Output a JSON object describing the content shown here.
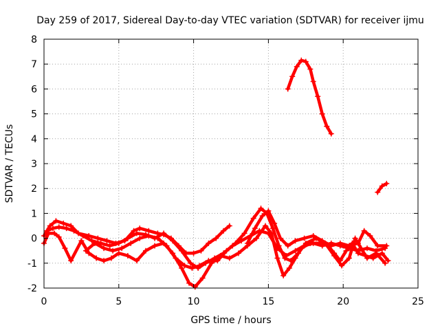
{
  "chart_data": {
    "type": "scatter",
    "title": "Day 259 of 2017, Sidereal Day-to-day VTEC variation (SDTVAR) for receiver ijmu",
    "xlabel": "GPS time / hours",
    "ylabel": "SDTVAR / TECUs",
    "xlim": [
      0,
      25
    ],
    "ylim": [
      -2,
      8
    ],
    "xticks": [
      0,
      5,
      10,
      15,
      20,
      25
    ],
    "yticks": [
      -2,
      -1,
      0,
      1,
      2,
      3,
      4,
      5,
      6,
      7,
      8
    ],
    "grid": true,
    "marker": "plus",
    "color": "#ff0000",
    "series": [
      {
        "name": "track-1",
        "points": [
          [
            0,
            0.1
          ],
          [
            0.4,
            0.5
          ],
          [
            0.8,
            0.7
          ],
          [
            1.3,
            0.6
          ],
          [
            1.8,
            0.5
          ],
          [
            2.3,
            0.2
          ],
          [
            3,
            0.1
          ],
          [
            3.6,
            0
          ],
          [
            4.2,
            -0.1
          ],
          [
            4.8,
            -0.2
          ],
          [
            5.4,
            -0.1
          ],
          [
            6,
            0.3
          ],
          [
            6.4,
            0.4
          ],
          [
            7,
            0.3
          ],
          [
            7.6,
            0.2
          ],
          [
            8,
            0.15
          ],
          [
            8.5,
            0
          ],
          [
            9,
            -0.3
          ],
          [
            9.5,
            -0.6
          ],
          [
            10,
            -0.6
          ],
          [
            10.5,
            -0.5
          ],
          [
            11,
            -0.2
          ],
          [
            11.5,
            0
          ],
          [
            12,
            0.3
          ],
          [
            12.4,
            0.5
          ]
        ]
      },
      {
        "name": "track-2",
        "points": [
          [
            0.2,
            0.3
          ],
          [
            0.6,
            0.4
          ],
          [
            1,
            0.45
          ],
          [
            1.5,
            0.4
          ],
          [
            2,
            0.3
          ],
          [
            2.6,
            0.1
          ],
          [
            3.2,
            -0.1
          ],
          [
            3.8,
            -0.2
          ],
          [
            4.4,
            -0.3
          ],
          [
            5,
            -0.2
          ],
          [
            5.6,
            0
          ],
          [
            6.2,
            0.2
          ],
          [
            6.8,
            0.15
          ],
          [
            7.4,
            0
          ],
          [
            8,
            0.2
          ],
          [
            8.6,
            -0.1
          ],
          [
            9.2,
            -0.5
          ],
          [
            9.8,
            -1
          ],
          [
            10.3,
            -1.2
          ],
          [
            10.8,
            -1
          ],
          [
            11.4,
            -0.8
          ],
          [
            12,
            -0.6
          ],
          [
            12.6,
            -0.3
          ],
          [
            13.2,
            -0.1
          ],
          [
            13.8,
            0.1
          ],
          [
            14.4,
            0.3
          ],
          [
            15,
            0.2
          ],
          [
            15.6,
            -0.4
          ],
          [
            16.2,
            -0.7
          ],
          [
            16.8,
            -0.5
          ],
          [
            17.4,
            -0.3
          ],
          [
            18,
            -0.2
          ],
          [
            18.6,
            -0.3
          ],
          [
            19.2,
            -0.2
          ],
          [
            19.8,
            -0.3
          ],
          [
            20.4,
            -0.4
          ],
          [
            21,
            -0.5
          ],
          [
            21.6,
            -0.4
          ],
          [
            22.2,
            -0.5
          ],
          [
            22.8,
            -0.4
          ]
        ]
      },
      {
        "name": "track-3",
        "points": [
          [
            0,
            -0.2
          ],
          [
            0.3,
            0.2
          ],
          [
            0.7,
            0.2
          ],
          [
            1,
            0.05
          ],
          [
            1.4,
            -0.4
          ],
          [
            1.8,
            -0.9
          ],
          [
            2.5,
            -0.1
          ],
          [
            3,
            -0.6
          ],
          [
            3.5,
            -0.8
          ],
          [
            4,
            -0.9
          ],
          [
            4.5,
            -0.8
          ],
          [
            5,
            -0.6
          ],
          [
            5.6,
            -0.7
          ],
          [
            6.2,
            -0.9
          ],
          [
            6.8,
            -0.5
          ],
          [
            7.4,
            -0.3
          ],
          [
            8,
            -0.2
          ],
          [
            8.6,
            -0.6
          ],
          [
            9.2,
            -1.2
          ],
          [
            9.7,
            -1.8
          ],
          [
            10.1,
            -1.95
          ],
          [
            10.6,
            -1.6
          ],
          [
            11.2,
            -1
          ],
          [
            11.8,
            -0.7
          ],
          [
            12.4,
            -0.8
          ],
          [
            13,
            -0.6
          ],
          [
            13.6,
            -0.3
          ],
          [
            14.2,
            0
          ],
          [
            14.8,
            0.5
          ],
          [
            15.2,
            0.2
          ],
          [
            15.6,
            -0.8
          ],
          [
            16,
            -1.5
          ],
          [
            16.4,
            -1.2
          ],
          [
            16.8,
            -0.8
          ],
          [
            17.2,
            -0.4
          ],
          [
            17.8,
            -0.2
          ],
          [
            18.4,
            -0.2
          ],
          [
            19,
            -0.3
          ],
          [
            19.4,
            -0.6
          ],
          [
            19.8,
            -0.9
          ],
          [
            20.2,
            -0.5
          ],
          [
            20.6,
            -0.2
          ],
          [
            21,
            -0.6
          ],
          [
            21.5,
            -0.7
          ],
          [
            22,
            -0.8
          ],
          [
            22.6,
            -0.6
          ],
          [
            23,
            -0.9
          ]
        ]
      },
      {
        "name": "track-4",
        "points": [
          [
            2.8,
            -0.5
          ],
          [
            3.4,
            -0.2
          ],
          [
            4,
            -0.4
          ],
          [
            4.6,
            -0.5
          ],
          [
            5.2,
            -0.4
          ],
          [
            5.8,
            -0.2
          ],
          [
            6.4,
            0
          ],
          [
            7,
            0.1
          ],
          [
            7.6,
            0
          ],
          [
            8.2,
            -0.3
          ],
          [
            8.8,
            -0.8
          ],
          [
            9.4,
            -1.1
          ],
          [
            9.9,
            -1.2
          ],
          [
            10.4,
            -1.1
          ],
          [
            11,
            -0.9
          ],
          [
            11.6,
            -0.9
          ],
          [
            12.2,
            -0.5
          ],
          [
            12.8,
            -0.2
          ],
          [
            13.4,
            0.2
          ],
          [
            14,
            0.8
          ],
          [
            14.5,
            1.2
          ],
          [
            14.9,
            1.0
          ],
          [
            15.3,
            0.4
          ],
          [
            15.7,
            -0.3
          ],
          [
            16.1,
            -0.8
          ],
          [
            16.5,
            -0.9
          ],
          [
            17,
            -0.6
          ],
          [
            17.5,
            -0.2
          ],
          [
            18.2,
            0
          ],
          [
            18.8,
            -0.2
          ],
          [
            19.4,
            -0.7
          ],
          [
            19.9,
            -1.1
          ],
          [
            20.4,
            -0.8
          ],
          [
            20.8,
            0
          ],
          [
            21.2,
            -0.4
          ],
          [
            21.6,
            -0.8
          ],
          [
            22.2,
            -0.6
          ],
          [
            22.8,
            -1
          ]
        ]
      },
      {
        "name": "track-5",
        "points": [
          [
            13.6,
            -0.2
          ],
          [
            14.1,
            0.4
          ],
          [
            14.6,
            0.9
          ],
          [
            15,
            1.1
          ],
          [
            15.4,
            0.6
          ],
          [
            15.8,
            0
          ],
          [
            16.3,
            -0.3
          ],
          [
            16.8,
            -0.1
          ],
          [
            17.4,
            0
          ],
          [
            18,
            0.1
          ],
          [
            18.6,
            -0.1
          ],
          [
            19.2,
            -0.3
          ],
          [
            19.8,
            -0.2
          ],
          [
            20.4,
            -0.3
          ],
          [
            21,
            -0.2
          ],
          [
            21.4,
            0.3
          ],
          [
            21.8,
            0.1
          ],
          [
            22.3,
            -0.3
          ],
          [
            22.9,
            -0.3
          ]
        ]
      },
      {
        "name": "track-6",
        "points": [
          [
            16.3,
            6
          ],
          [
            16.6,
            6.5
          ],
          [
            16.9,
            6.9
          ],
          [
            17.2,
            7.15
          ],
          [
            17.5,
            7.1
          ],
          [
            17.8,
            6.8
          ],
          [
            18,
            6.3
          ],
          [
            18.3,
            5.7
          ],
          [
            18.6,
            5
          ],
          [
            18.9,
            4.5
          ],
          [
            19.2,
            4.2
          ]
        ]
      },
      {
        "name": "track-7",
        "points": [
          [
            22.3,
            1.85
          ],
          [
            22.6,
            2.1
          ],
          [
            22.9,
            2.2
          ]
        ]
      }
    ]
  }
}
